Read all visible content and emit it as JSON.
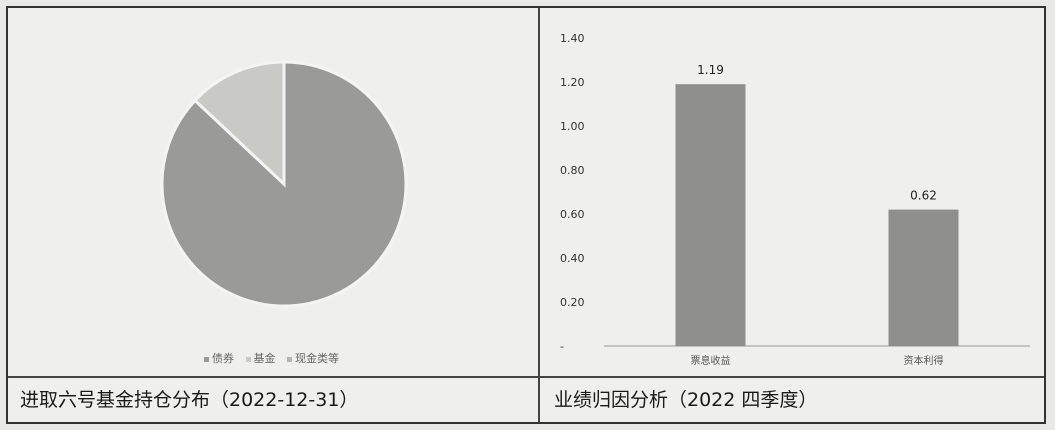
{
  "captions": {
    "left": "进取六号基金持仓分布（2022-12-31）",
    "right": "业绩归因分析（2022 四季度）"
  },
  "chart_data": [
    {
      "type": "pie",
      "title": "进取六号基金持仓分布（2022-12-31）",
      "slices": [
        {
          "label": "债券",
          "value": 87,
          "color": "#9a9a98"
        },
        {
          "label": "基金",
          "value": 13,
          "color": "#c9c9c6"
        },
        {
          "label": "现金类等",
          "value": 0,
          "color": "#b5b5b2"
        }
      ],
      "legend": [
        "债券",
        "基金",
        "现金类等"
      ],
      "legend_position": "bottom"
    },
    {
      "type": "bar",
      "title": "业绩归因分析（2022 四季度）",
      "categories": [
        "票息收益",
        "资本利得"
      ],
      "values": [
        1.19,
        0.62
      ],
      "data_labels": [
        "1.19",
        "0.62"
      ],
      "y_ticks": [
        "1.40",
        "1.20",
        "1.00",
        "0.80",
        "0.60",
        "0.40",
        "0.20",
        "-"
      ],
      "ylim": [
        0,
        1.4
      ],
      "bar_color": "#8f8f8d",
      "grid": false
    }
  ]
}
